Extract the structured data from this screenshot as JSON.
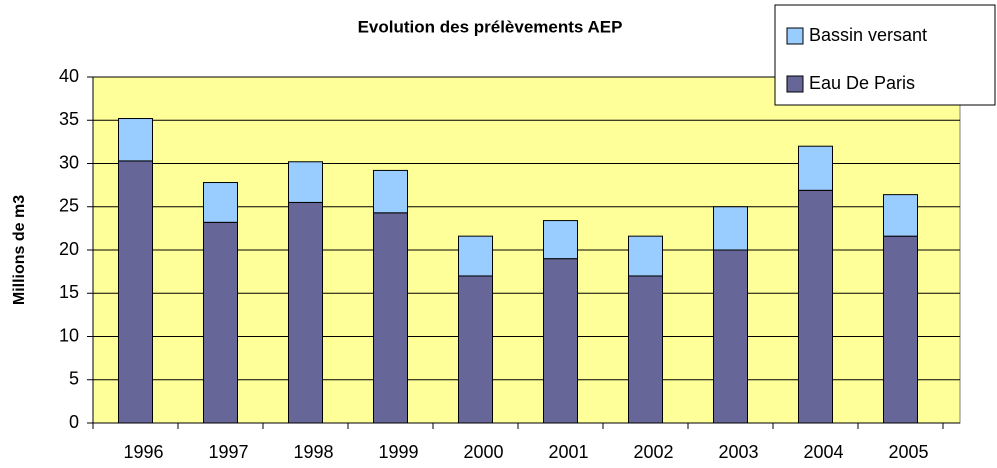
{
  "chart_data": {
    "type": "stacked_bar",
    "title": "Evolution des prélèvements AEP",
    "y_label": "Millions de m3",
    "categories": [
      "1996",
      "1997",
      "1998",
      "1999",
      "2000",
      "2001",
      "2002",
      "2003",
      "2004",
      "2005"
    ],
    "series": [
      {
        "name": "Eau De Paris",
        "color": "#666699",
        "values": [
          30.3,
          23.2,
          25.5,
          24.3,
          17,
          19,
          17,
          20,
          26.9,
          21.6
        ]
      },
      {
        "name": "Bassin versant",
        "color": "#99ccff",
        "values": [
          4.9,
          4.6,
          4.7,
          4.9,
          4.6,
          4.4,
          4.6,
          5,
          5.1,
          4.8
        ]
      }
    ],
    "ylim": [
      0,
      40
    ],
    "yticks": [
      0,
      5,
      10,
      15,
      20,
      25,
      30,
      35,
      40
    ],
    "grid": true,
    "legend": "top-right"
  }
}
